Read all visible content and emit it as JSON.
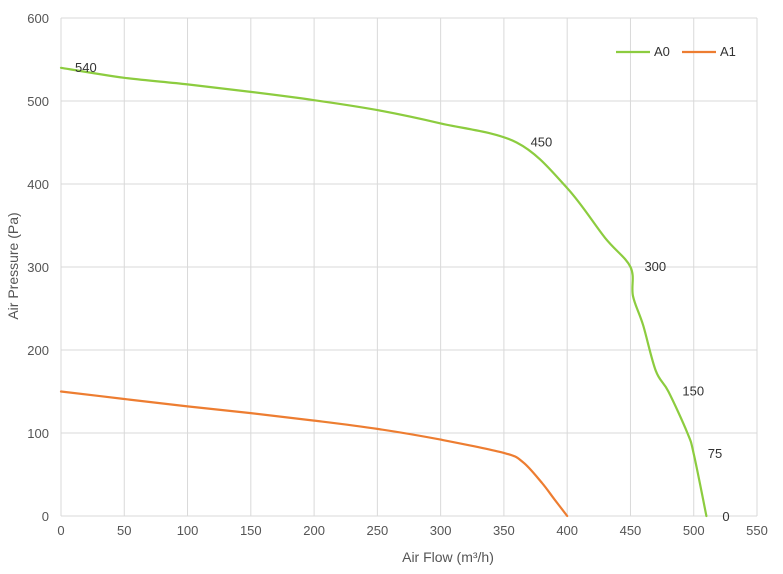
{
  "chart_data": {
    "type": "line",
    "title": "",
    "xlabel": "Air Flow  (m³/h)",
    "ylabel": "Air Pressure  (Pa)",
    "xlim": [
      0,
      550
    ],
    "ylim": [
      0,
      600
    ],
    "xticks": [
      0,
      50,
      100,
      150,
      200,
      250,
      300,
      350,
      400,
      450,
      500,
      550
    ],
    "yticks": [
      0,
      100,
      200,
      300,
      400,
      500,
      600
    ],
    "grid": true,
    "legend": "top-right",
    "series": [
      {
        "name": "A0",
        "color": "#8ccc3f",
        "points": [
          [
            0,
            540
          ],
          [
            50,
            528
          ],
          [
            100,
            520
          ],
          [
            150,
            511
          ],
          [
            200,
            501
          ],
          [
            250,
            489
          ],
          [
            300,
            473
          ],
          [
            360,
            450
          ],
          [
            400,
            395
          ],
          [
            430,
            335
          ],
          [
            450,
            300
          ],
          [
            452,
            265
          ],
          [
            460,
            230
          ],
          [
            470,
            175
          ],
          [
            480,
            150
          ],
          [
            495,
            100
          ],
          [
            500,
            75
          ],
          [
            510,
            0
          ]
        ],
        "labels": [
          {
            "x": 0,
            "y": 540,
            "text": "540"
          },
          {
            "x": 360,
            "y": 450,
            "text": "450"
          },
          {
            "x": 450,
            "y": 300,
            "text": "300"
          },
          {
            "x": 480,
            "y": 150,
            "text": "150"
          },
          {
            "x": 500,
            "y": 75,
            "text": "75"
          },
          {
            "x": 510,
            "y": 0,
            "text": "0"
          }
        ]
      },
      {
        "name": "A1",
        "color": "#ed7d31",
        "points": [
          [
            0,
            150
          ],
          [
            50,
            141
          ],
          [
            100,
            132
          ],
          [
            150,
            124
          ],
          [
            200,
            115
          ],
          [
            250,
            105
          ],
          [
            300,
            92
          ],
          [
            350,
            76
          ],
          [
            365,
            65
          ],
          [
            380,
            40
          ],
          [
            390,
            20
          ],
          [
            400,
            0
          ]
        ],
        "labels": []
      }
    ]
  }
}
